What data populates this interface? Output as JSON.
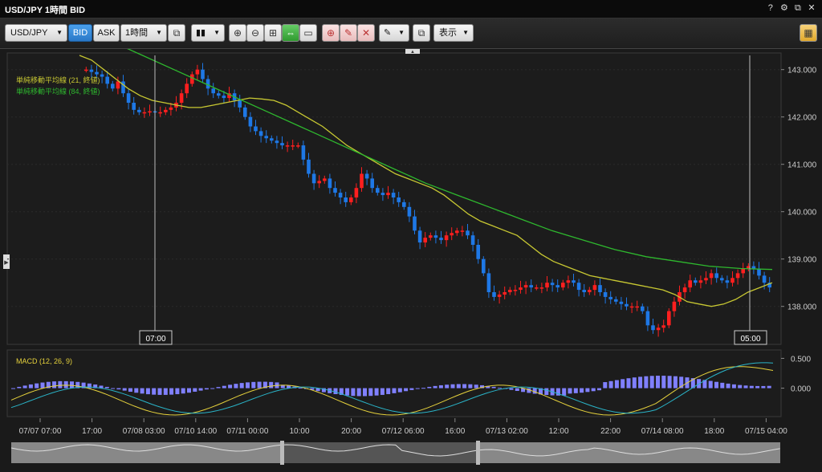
{
  "window": {
    "title": "USD/JPY 1時間 BID",
    "icons": [
      "help-icon",
      "gear-icon",
      "restore-icon",
      "close-icon"
    ],
    "glyphs": {
      "help": "?",
      "gear": "⚙",
      "restore": "⧉",
      "close": "✕"
    }
  },
  "toolbar": {
    "symbol": "USD/JPY",
    "bid_label": "BID",
    "ask_label": "ASK",
    "timeframe": "1時間",
    "display_label": "表示"
  },
  "chart": {
    "ma21_label": "単純移動平均線 (21, 終値)",
    "ma84_label": "単純移動平均線 (84, 終値)",
    "macd_label": "MACD (12, 26, 9)",
    "crosshair_left": "07:00",
    "crosshair_right": "05:00",
    "price_ticks": [
      "143.000",
      "142.000",
      "141.000",
      "140.000",
      "139.000",
      "138.000"
    ],
    "macd_ticks": [
      "0.500",
      "0.000"
    ],
    "time_ticks": [
      "07/07 07:00",
      "17:00",
      "07/08 03:00",
      "07/10 14:00",
      "07/11 00:00",
      "10:00",
      "20:00",
      "07/12 06:00",
      "16:00",
      "07/13 02:00",
      "12:00",
      "22:00",
      "07/14 08:00",
      "18:00",
      "07/15 04:00"
    ],
    "colors": {
      "up": "#ff1f1f",
      "down": "#1e78e6",
      "ma21": "#c8c832",
      "ma84": "#2eb82e",
      "hist": "#8080ff",
      "macd": "#e6d23c",
      "signal": "#2ab4c8"
    }
  },
  "chart_data": {
    "type": "candlestick",
    "title": "USD/JPY 1時間 BID",
    "y_range": [
      137.3,
      143.3
    ],
    "ohlc_start": 143.0,
    "ohlc_note": "hourly candles, 07/07 07:00 to 07/15 05:00",
    "close_series": [
      143.0,
      142.95,
      142.9,
      142.85,
      142.7,
      142.6,
      142.75,
      142.5,
      142.3,
      142.15,
      142.1,
      142.1,
      142.12,
      142.1,
      142.1,
      142.15,
      142.2,
      142.3,
      142.5,
      142.7,
      142.9,
      143.0,
      142.8,
      142.6,
      142.5,
      142.45,
      142.4,
      142.5,
      142.35,
      142.2,
      142.0,
      141.8,
      141.7,
      141.6,
      141.55,
      141.5,
      141.45,
      141.4,
      141.4,
      141.4,
      141.4,
      141.1,
      140.8,
      140.6,
      140.65,
      140.7,
      140.5,
      140.4,
      140.3,
      140.2,
      140.3,
      140.5,
      140.8,
      140.7,
      140.5,
      140.4,
      140.35,
      140.4,
      140.3,
      140.2,
      140.1,
      139.9,
      139.6,
      139.35,
      139.45,
      139.5,
      139.45,
      139.4,
      139.5,
      139.55,
      139.6,
      139.6,
      139.5,
      139.3,
      139.0,
      138.7,
      138.3,
      138.2,
      138.25,
      138.3,
      138.35,
      138.35,
      138.4,
      138.45,
      138.4,
      138.4,
      138.4,
      138.5,
      138.45,
      138.4,
      138.5,
      138.55,
      138.5,
      138.35,
      138.3,
      138.35,
      138.45,
      138.3,
      138.2,
      138.15,
      138.1,
      138.05,
      138.0,
      138.0,
      138.0,
      137.9,
      137.6,
      137.5,
      137.55,
      137.6,
      137.9,
      138.1,
      138.3,
      138.4,
      138.55,
      138.5,
      138.55,
      138.6,
      138.7,
      138.6,
      138.55,
      138.5,
      138.6,
      138.7,
      138.8,
      138.85,
      138.8,
      138.65,
      138.5,
      138.4
    ],
    "ma21": [
      143.3,
      143.2,
      143.0,
      142.8,
      142.6,
      142.45,
      142.35,
      142.3,
      142.25,
      142.2,
      142.2,
      142.25,
      142.3,
      142.35,
      142.4,
      142.38,
      142.35,
      142.25,
      142.1,
      141.95,
      141.8,
      141.6,
      141.4,
      141.25,
      141.1,
      140.95,
      140.8,
      140.7,
      140.6,
      140.5,
      140.35,
      140.15,
      139.95,
      139.8,
      139.7,
      139.6,
      139.5,
      139.3,
      139.1,
      138.95,
      138.85,
      138.75,
      138.65,
      138.6,
      138.55,
      138.5,
      138.45,
      138.4,
      138.35,
      138.25,
      138.1,
      138.05,
      138.0,
      138.05,
      138.15,
      138.3,
      138.4,
      138.5
    ],
    "ma84": [
      144.0,
      143.6,
      143.3,
      143.0,
      142.7,
      142.4,
      142.1,
      141.8,
      141.5,
      141.2,
      140.9,
      140.6,
      140.35,
      140.1,
      139.85,
      139.6,
      139.4,
      139.2,
      139.05,
      138.95,
      138.85,
      138.8,
      138.78
    ],
    "macd_range": [
      -0.45,
      0.6
    ]
  }
}
